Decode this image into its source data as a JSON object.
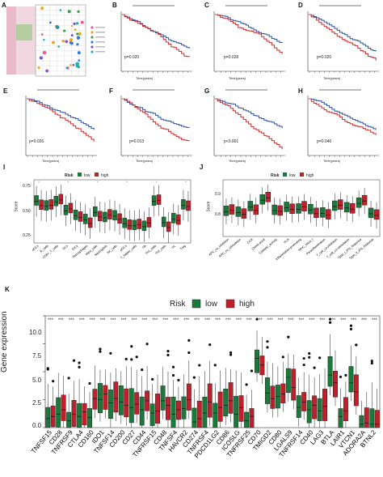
{
  "panel_labels": {
    "A": "A",
    "B": "B",
    "C": "C",
    "D": "D",
    "E": "E",
    "F": "F",
    "G": "G",
    "H": "H",
    "I": "I",
    "J": "J",
    "K": "K"
  },
  "colors": {
    "low": "#1b7a3a",
    "high": "#c0202a",
    "km_high": "#cc2a2a",
    "km_low": "#2c4f9a"
  },
  "km_pvalues": {
    "B": "p=0.020",
    "C": "p=0.028",
    "D": "p=0.020",
    "E": "p=0.026",
    "F": "p=0.013",
    "G": "p<0.001",
    "H": "p=0.046"
  },
  "km_xlabel": "Time(years)",
  "legend": {
    "title": "Risk",
    "low": "low",
    "high": "high"
  },
  "panel_I": {
    "ylabel": "Score",
    "yticks": [
      "0.75",
      "0.50",
      "0.25"
    ],
    "categories": [
      "aDCs",
      "B_cells",
      "CD8+_T_cells",
      "DCs",
      "iDCs",
      "Macrophages",
      "Mast_cells",
      "Neutrophils",
      "NK_cells",
      "pDCs",
      "T_helper_cells",
      "Tfh",
      "Th1_cells",
      "Th2_cells",
      "TIL",
      "Treg"
    ]
  },
  "panel_J": {
    "ylabel": "Score",
    "yticks": [
      "0.9",
      "0.8"
    ],
    "categories": [
      "APC_co_inhibition",
      "APC_co_stimulation",
      "CCR",
      "Check-point",
      "Cytolytic_activity",
      "HLA",
      "Inflammation-promoting",
      "MHC_class_I",
      "Parainflammation",
      "T_cell_co-inhibition",
      "T_cell_co-stimulation",
      "Type_I_IFN_Reponse",
      "Type_II_IFN_Reponse"
    ]
  },
  "chart_data": {
    "type": "box",
    "title": "",
    "ylabel": "Gene expression",
    "yticks": [
      "0.0",
      "2.5",
      "5.0",
      "7.5",
      "10.0"
    ],
    "ylim": [
      0,
      10
    ],
    "categories": [
      "TNFSF15",
      "CD28",
      "TNFRSF9",
      "CTLA4",
      "CD160",
      "IDO1",
      "TNFSF14",
      "CD200",
      "CD27",
      "CD44",
      "TNFRSF15",
      "CD48",
      "TNFSF4",
      "HAVCR2",
      "CD274",
      "TNFRSF4",
      "PDCD1LG2",
      "CD86",
      "ICOSLG",
      "TNFRSF25",
      "CD70",
      "TMIGD2",
      "CD80",
      "LGALS9",
      "TNFRSF14",
      "CD40",
      "LAG3",
      "BTLA",
      "LAIR1",
      "VTCN1",
      "ADORA2A",
      "BTNL2"
    ],
    "series": [
      {
        "name": "low",
        "medians": [
          0.8,
          1.2,
          0.6,
          1.0,
          0.9,
          2.5,
          2.2,
          2.3,
          1.8,
          1.6,
          1.3,
          2.4,
          1.2,
          1.7,
          0.5,
          1.3,
          1.3,
          2.0,
          1.2,
          0.6,
          6.2,
          3.1,
          2.8,
          4.5,
          1.8,
          1.6,
          1.5,
          4.7,
          1.0,
          4.0,
          0.3,
          0.3
        ]
      },
      {
        "name": "high",
        "medians": [
          1.0,
          1.6,
          1.2,
          1.4,
          2.6,
          3.0,
          2.6,
          2.0,
          2.1,
          2.4,
          1.5,
          2.0,
          1.6,
          2.5,
          0.8,
          2.3,
          1.8,
          2.4,
          1.8,
          1.0,
          5.6,
          2.6,
          3.0,
          3.6,
          2.3,
          2.0,
          1.9,
          4.0,
          1.5,
          3.2,
          0.4,
          0.3
        ]
      }
    ]
  }
}
